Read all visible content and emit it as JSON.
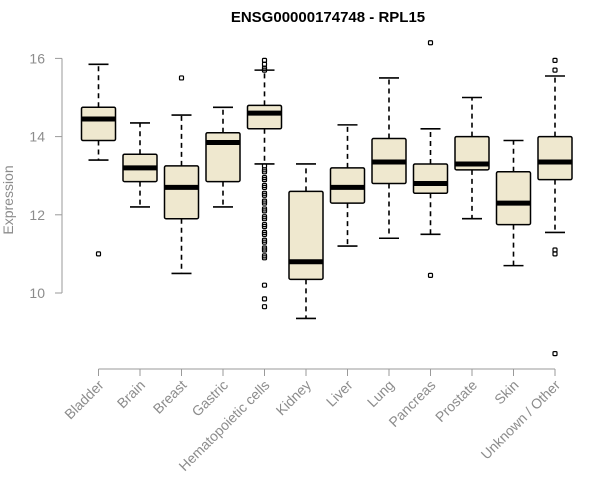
{
  "chart_data": {
    "type": "boxplot",
    "title": "ENSG00000174748 - RPL15",
    "ylabel": "Expression",
    "xlabel": "",
    "ylim": [
      8.3,
      16.5
    ],
    "yticks": [
      10,
      12,
      14,
      16
    ],
    "grid": false,
    "categories": [
      "Bladder",
      "Brain",
      "Breast",
      "Gastric",
      "Hematopoietic cells",
      "Kidney",
      "Liver",
      "Lung",
      "Pancreas",
      "Prostate",
      "Skin",
      "Unknown / Other"
    ],
    "tick_labels": [
      "Bladder",
      "Brain",
      "Breast",
      "Gastric",
      "Hematopoietic cells",
      "Kidney",
      "Liver",
      "Lung",
      "Pancreas",
      "Prostate",
      "Skin",
      "Unknown / Other"
    ],
    "boxes": [
      {
        "whisker_low": 13.4,
        "q1": 13.9,
        "median": 14.45,
        "q3": 14.75,
        "whisker_high": 15.85,
        "outliers": [
          11.0
        ]
      },
      {
        "whisker_low": 12.2,
        "q1": 12.85,
        "median": 13.2,
        "q3": 13.55,
        "whisker_high": 14.35,
        "outliers": []
      },
      {
        "whisker_low": 10.5,
        "q1": 11.9,
        "median": 12.7,
        "q3": 13.25,
        "whisker_high": 14.55,
        "outliers": [
          15.5
        ]
      },
      {
        "whisker_low": 12.2,
        "q1": 12.85,
        "median": 13.85,
        "q3": 14.1,
        "whisker_high": 14.75,
        "outliers": []
      },
      {
        "whisker_low": 13.3,
        "q1": 14.2,
        "median": 14.6,
        "q3": 14.8,
        "whisker_high": 15.7,
        "outliers": [
          15.95,
          15.85,
          15.75,
          15.7,
          13.25,
          13.1,
          12.9,
          12.7,
          12.5,
          12.3,
          12.1,
          11.9,
          11.7,
          11.5,
          11.3,
          11.1,
          10.9,
          10.2,
          9.85,
          9.65,
          13.15,
          12.95,
          12.75,
          12.55,
          12.35,
          12.15,
          11.95,
          11.75,
          11.55,
          11.35,
          11.15,
          10.95
        ]
      },
      {
        "whisker_low": 9.35,
        "q1": 10.35,
        "median": 10.8,
        "q3": 12.6,
        "whisker_high": 13.3,
        "outliers": []
      },
      {
        "whisker_low": 11.2,
        "q1": 12.3,
        "median": 12.7,
        "q3": 13.2,
        "whisker_high": 14.3,
        "outliers": []
      },
      {
        "whisker_low": 11.4,
        "q1": 12.8,
        "median": 13.35,
        "q3": 13.95,
        "whisker_high": 15.5,
        "outliers": []
      },
      {
        "whisker_low": 11.5,
        "q1": 12.55,
        "median": 12.8,
        "q3": 13.3,
        "whisker_high": 14.2,
        "outliers": [
          16.4,
          10.45
        ]
      },
      {
        "whisker_low": 11.9,
        "q1": 13.15,
        "median": 13.3,
        "q3": 14.0,
        "whisker_high": 15.0,
        "outliers": []
      },
      {
        "whisker_low": 10.7,
        "q1": 11.75,
        "median": 12.3,
        "q3": 13.1,
        "whisker_high": 13.9,
        "outliers": []
      },
      {
        "whisker_low": 11.55,
        "q1": 12.9,
        "median": 13.35,
        "q3": 14.0,
        "whisker_high": 15.55,
        "outliers": [
          15.95,
          15.7,
          11.1,
          11.0,
          8.45
        ]
      }
    ],
    "box_fill": "#efe8cf",
    "outline_color": "#000000",
    "axis_color": "#9a9a9a",
    "label_color": "#8c8c8c"
  }
}
